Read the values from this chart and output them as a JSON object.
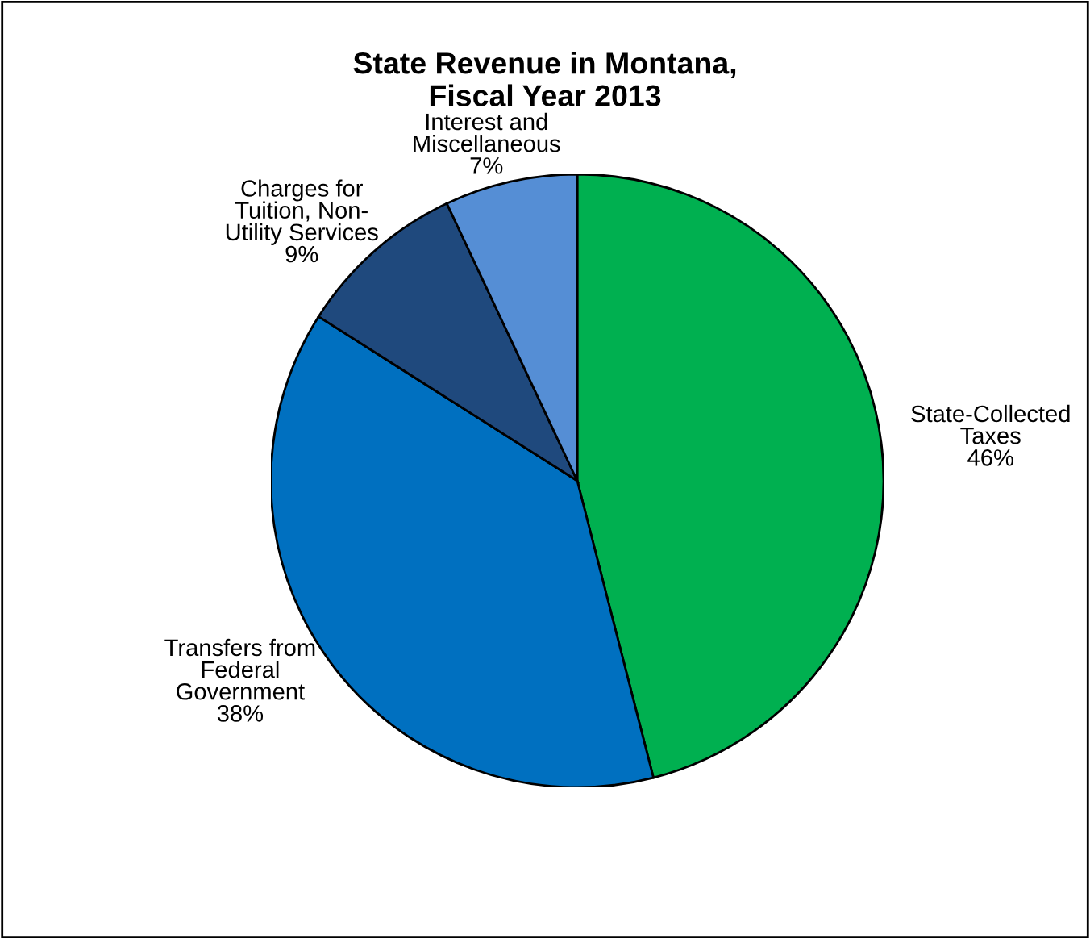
{
  "chart_data": {
    "type": "pie",
    "title": "State Revenue in Montana,\nFiscal Year 2013",
    "categories": [
      "State-Collected\nTaxes",
      "Transfers from\nFederal\nGovernment",
      "Charges for\nTuition, Non-\nUtility Services",
      "Interest and\nMiscellaneous"
    ],
    "values": [
      46,
      38,
      9,
      7
    ],
    "value_labels": [
      "46%",
      "38%",
      "9%",
      "7%"
    ],
    "colors": [
      "#00b050",
      "#0070c0",
      "#1f497d",
      "#558ed5"
    ],
    "legend": false
  }
}
